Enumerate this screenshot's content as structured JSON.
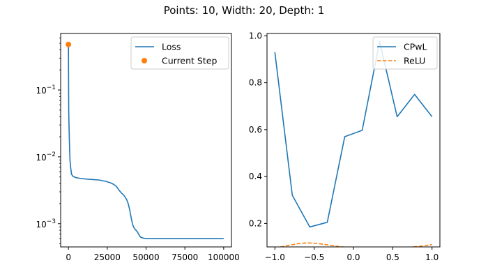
{
  "figure": {
    "title": "Points: 10, Width: 20, Depth: 1"
  },
  "chart_data": [
    {
      "type": "line",
      "yscale": "log",
      "xlim": [
        -5000,
        105000
      ],
      "ylim": [
        0.00045,
        0.7
      ],
      "xticks": [
        {
          "value": 0,
          "label": "0"
        },
        {
          "value": 25000,
          "label": "25000"
        },
        {
          "value": 50000,
          "label": "50000"
        },
        {
          "value": 75000,
          "label": "75000"
        },
        {
          "value": 100000,
          "label": "100000"
        }
      ],
      "yticks": [
        {
          "value": 0.001,
          "base": "10",
          "exp": "−3"
        },
        {
          "value": 0.01,
          "base": "10",
          "exp": "−2"
        },
        {
          "value": 0.1,
          "base": "10",
          "exp": "−1"
        }
      ],
      "legend": {
        "position": "top-right"
      },
      "series": [
        {
          "name": "Loss",
          "color": "#1f77b4",
          "style": "solid",
          "x": [
            0,
            200,
            400,
            700,
            1000,
            1500,
            2000,
            3000,
            5000,
            8000,
            12000,
            16000,
            20000,
            24000,
            27000,
            29000,
            31000,
            32500,
            34000,
            35500,
            36500,
            37500,
            38500,
            39500,
            40500,
            41500,
            42500,
            43500,
            44500,
            45500,
            46500,
            48000,
            50000,
            60000,
            70000,
            80000,
            90000,
            100000
          ],
          "y": [
            0.48,
            0.05,
            0.028,
            0.015,
            0.009,
            0.0068,
            0.0055,
            0.0051,
            0.00488,
            0.00475,
            0.00465,
            0.00458,
            0.0045,
            0.0043,
            0.0041,
            0.0039,
            0.0036,
            0.0032,
            0.0029,
            0.0027,
            0.0025,
            0.0023,
            0.002,
            0.0016,
            0.0012,
            0.00095,
            0.00085,
            0.0008,
            0.00075,
            0.00068,
            0.00063,
            0.00061,
            0.0006,
            0.0006,
            0.0006,
            0.0006,
            0.0006,
            0.0006
          ]
        },
        {
          "name": "Current Step",
          "type": "scatter",
          "color": "#ff7f0e",
          "x": [
            0
          ],
          "y": [
            0.48
          ]
        }
      ]
    },
    {
      "type": "line",
      "xlim": [
        -1.1,
        1.1
      ],
      "ylim": [
        0.1,
        1.01
      ],
      "xticks": [
        {
          "value": -1.0,
          "label": "−1.0"
        },
        {
          "value": -0.5,
          "label": "−0.5"
        },
        {
          "value": 0.0,
          "label": "0.0"
        },
        {
          "value": 0.5,
          "label": "0.5"
        },
        {
          "value": 1.0,
          "label": "1.0"
        }
      ],
      "yticks": [
        {
          "value": 0.2,
          "label": "0.2"
        },
        {
          "value": 0.4,
          "label": "0.4"
        },
        {
          "value": 0.6,
          "label": "0.6"
        },
        {
          "value": 0.8,
          "label": "0.8"
        },
        {
          "value": 1.0,
          "label": "1.0"
        }
      ],
      "legend": {
        "position": "top-right"
      },
      "series": [
        {
          "name": "CPwL",
          "color": "#1f77b4",
          "style": "solid",
          "x": [
            -1.0,
            -0.778,
            -0.556,
            -0.333,
            -0.111,
            0.111,
            0.333,
            0.556,
            0.778,
            1.0
          ],
          "y": [
            0.93,
            0.32,
            0.185,
            0.205,
            0.57,
            0.597,
            0.975,
            0.655,
            0.75,
            0.655
          ]
        },
        {
          "name": "ReLU",
          "color": "#ff7f0e",
          "style": "dashed",
          "x": [
            -1.0,
            -0.85,
            -0.7,
            -0.6,
            -0.5,
            -0.35,
            -0.2,
            -0.05,
            0.1,
            0.25,
            0.4,
            0.55,
            0.7,
            0.85,
            1.0
          ],
          "y": [
            0.095,
            0.105,
            0.114,
            0.117,
            0.116,
            0.11,
            0.102,
            0.097,
            0.094,
            0.093,
            0.093,
            0.094,
            0.098,
            0.103,
            0.11
          ]
        }
      ]
    }
  ]
}
